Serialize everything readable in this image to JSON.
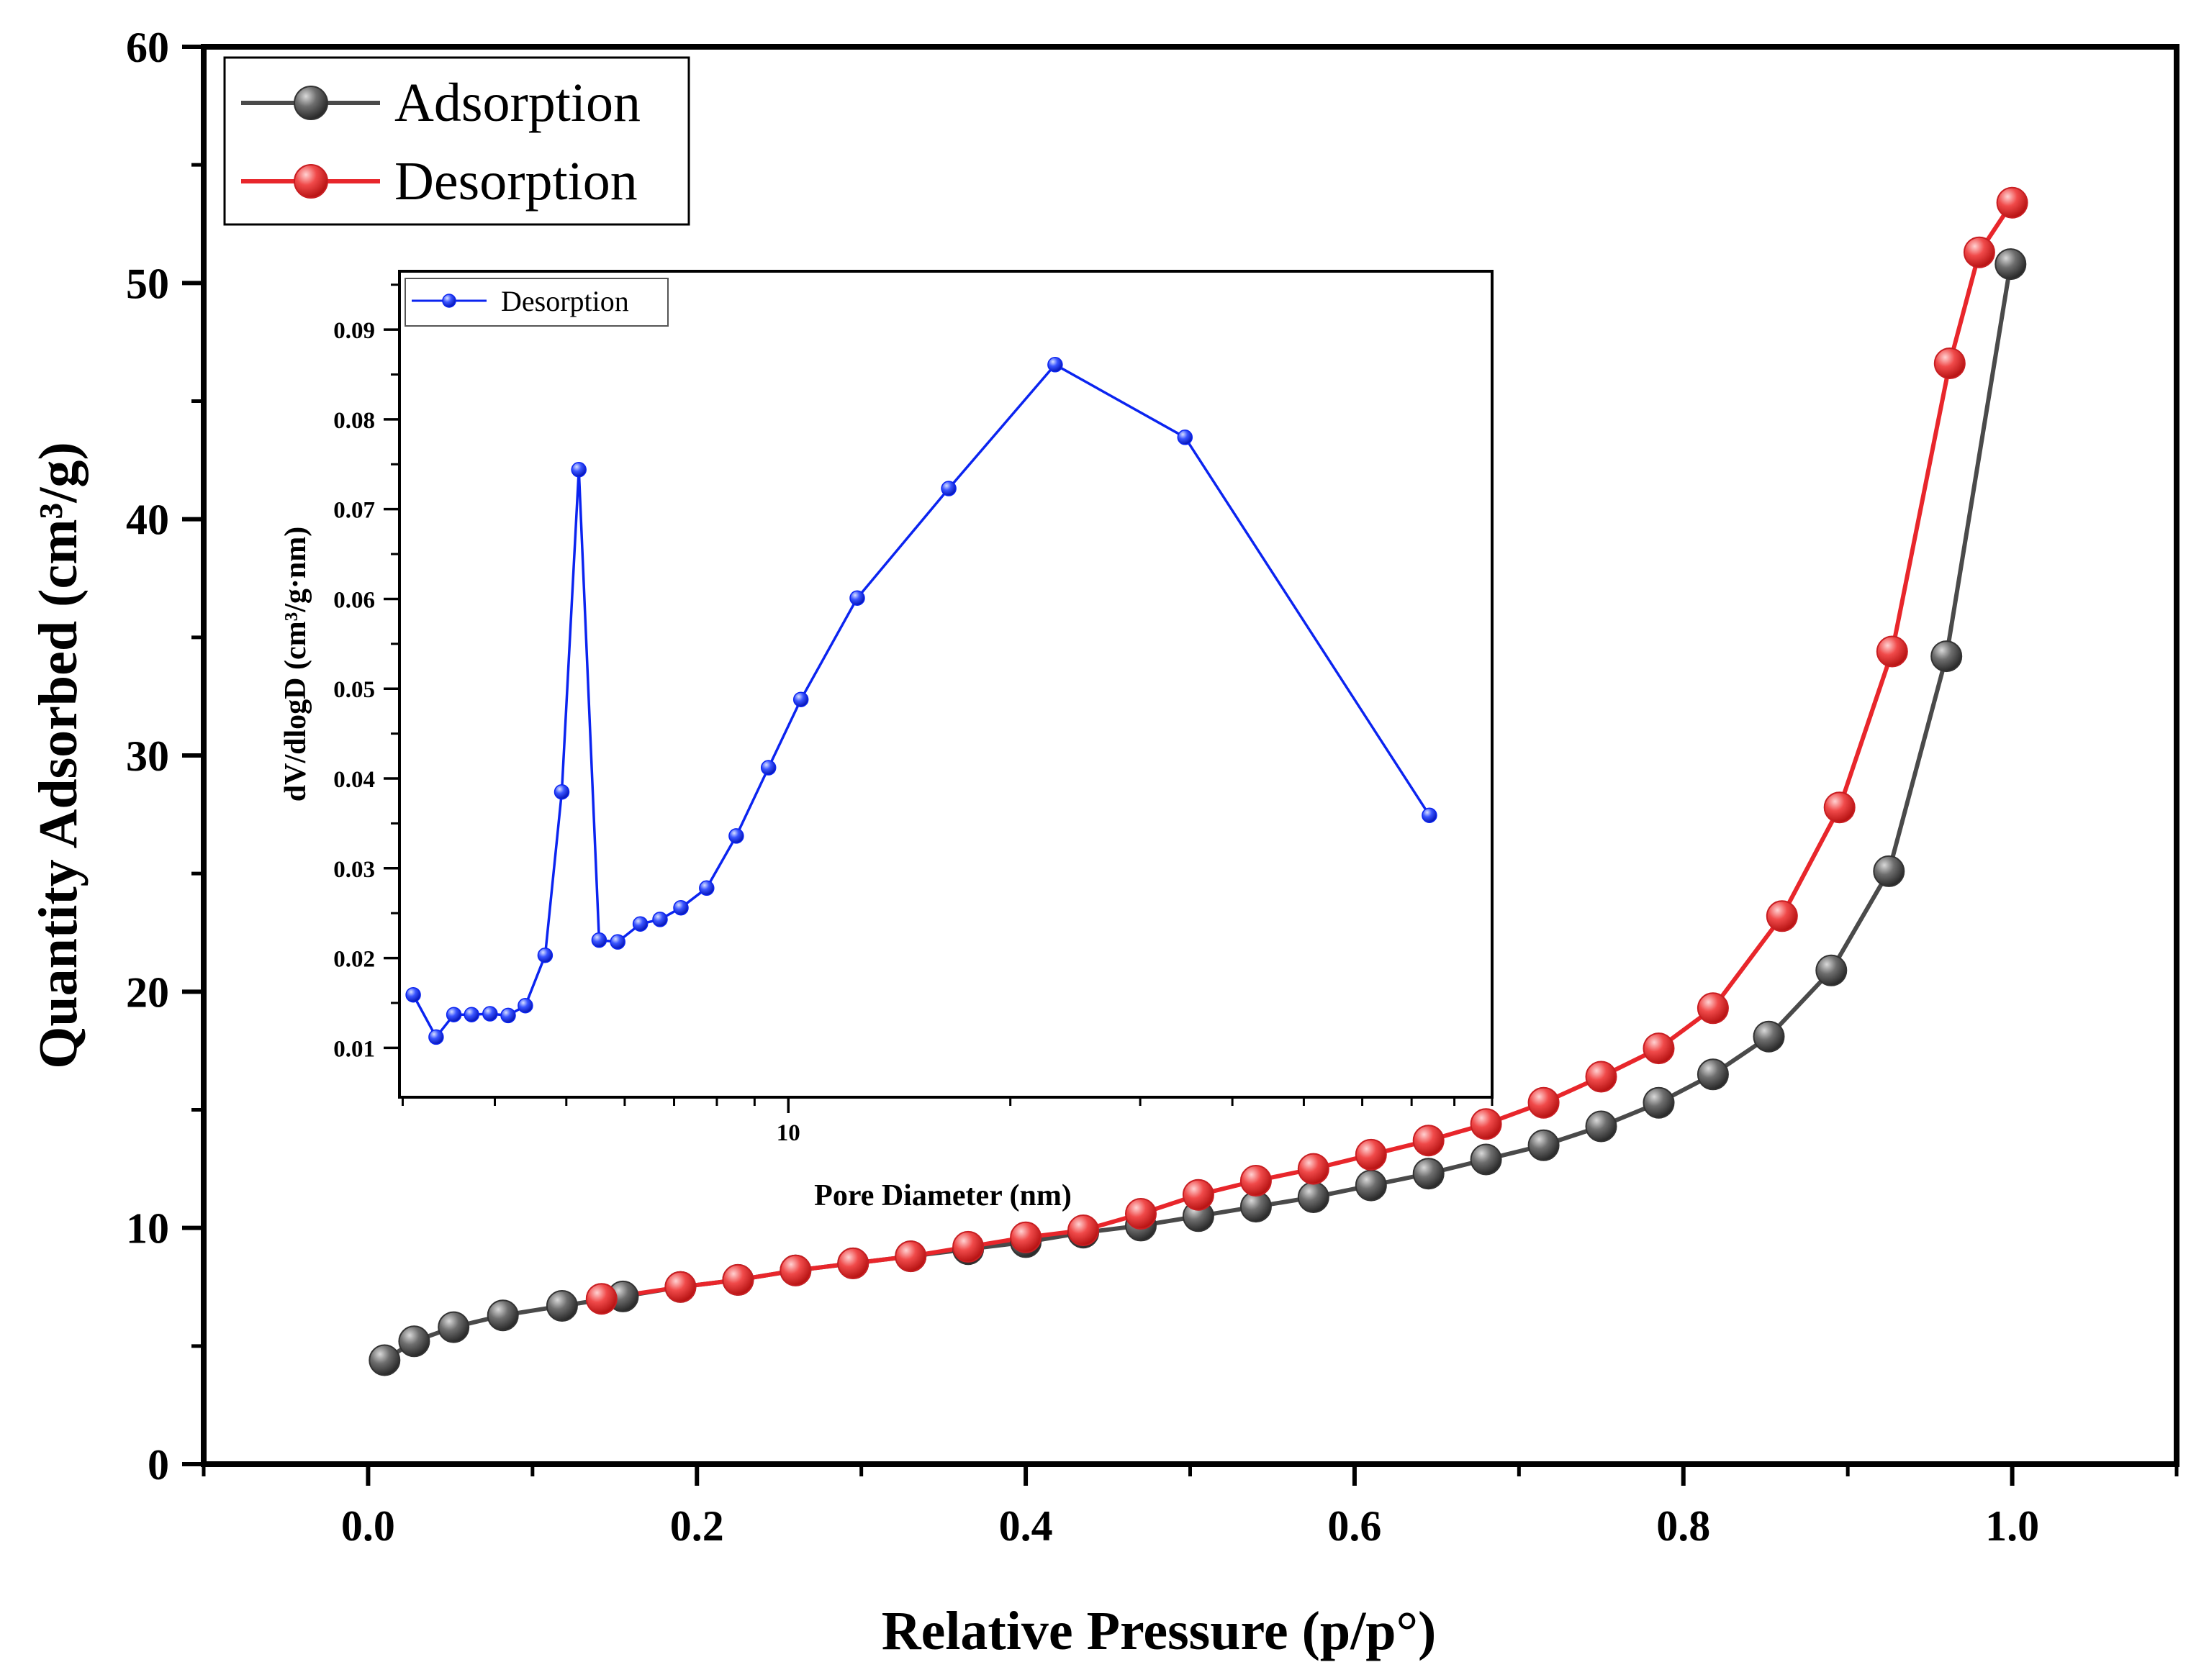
{
  "chart_data": [
    {
      "type": "line",
      "name": "main-isotherm",
      "xlabel": "Relative Pressure (p/p°)",
      "ylabel": "Quantity Adsorbed (cm³/g)",
      "xlim": [
        -0.1,
        1.1
      ],
      "ylim": [
        0,
        60
      ],
      "x_ticks": [
        0.0,
        0.2,
        0.4,
        0.6,
        0.8,
        1.0
      ],
      "x_tick_labels": [
        "0.0",
        "0.2",
        "0.4",
        "0.6",
        "0.8",
        "1.0"
      ],
      "y_ticks": [
        0,
        10,
        20,
        30,
        40,
        50,
        60
      ],
      "y_tick_labels": [
        "0",
        "10",
        "20",
        "30",
        "40",
        "50",
        "60"
      ],
      "legend_position": "top-left",
      "series": [
        {
          "name": "Adsorption",
          "color": "#4a4a4a",
          "x": [
            0.01,
            0.028,
            0.052,
            0.082,
            0.118,
            0.155,
            0.19,
            0.225,
            0.26,
            0.295,
            0.33,
            0.365,
            0.4,
            0.435,
            0.47,
            0.505,
            0.54,
            0.575,
            0.61,
            0.645,
            0.68,
            0.715,
            0.75,
            0.785,
            0.818,
            0.852,
            0.89,
            0.925,
            0.96,
            0.999
          ],
          "values": [
            4.4,
            5.2,
            5.8,
            6.3,
            6.7,
            7.1,
            7.5,
            7.8,
            8.2,
            8.5,
            8.8,
            9.1,
            9.4,
            9.8,
            10.1,
            10.5,
            10.9,
            11.3,
            11.8,
            12.3,
            12.9,
            13.5,
            14.3,
            15.3,
            16.5,
            18.1,
            20.9,
            25.1,
            34.2,
            50.8
          ]
        },
        {
          "name": "Desorption",
          "color": "#e8262b",
          "x": [
            0.142,
            0.19,
            0.225,
            0.26,
            0.295,
            0.33,
            0.365,
            0.4,
            0.435,
            0.47,
            0.505,
            0.54,
            0.575,
            0.61,
            0.645,
            0.68,
            0.715,
            0.75,
            0.785,
            0.818,
            0.86,
            0.895,
            0.927,
            0.962,
            0.98,
            1.0
          ],
          "values": [
            7.0,
            7.5,
            7.8,
            8.2,
            8.5,
            8.8,
            9.2,
            9.6,
            9.9,
            10.6,
            11.4,
            12.0,
            12.5,
            13.1,
            13.7,
            14.4,
            15.3,
            16.4,
            17.6,
            19.3,
            23.2,
            27.8,
            34.4,
            46.6,
            51.3,
            53.4
          ]
        }
      ]
    },
    {
      "type": "line",
      "name": "inset-pore-size-distribution",
      "xlabel": "Pore Diameter (nm)",
      "ylabel": "dV/dlogD (cm³/g·nm)",
      "xscale": "log",
      "xlim": [
        2.97,
        90
      ],
      "ylim": [
        0.0045,
        0.0965
      ],
      "x_ticks": [
        10
      ],
      "x_tick_labels": [
        "10"
      ],
      "y_ticks": [
        0.01,
        0.02,
        0.03,
        0.04,
        0.05,
        0.06,
        0.07,
        0.08,
        0.09
      ],
      "y_tick_labels": [
        "0.01",
        "0.02",
        "0.03",
        "0.04",
        "0.05",
        "0.06",
        "0.07",
        "0.08",
        "0.09"
      ],
      "legend_position": "top-left",
      "series": [
        {
          "name": "Desorption",
          "color": "#0b24f0",
          "x": [
            3.1,
            3.33,
            3.52,
            3.72,
            3.94,
            4.17,
            4.4,
            4.68,
            4.93,
            5.2,
            5.54,
            5.87,
            6.3,
            6.7,
            7.15,
            7.75,
            8.5,
            9.4,
            10.4,
            12.4,
            16.5,
            23.0,
            34.5,
            74.0
          ],
          "values": [
            0.0159,
            0.0112,
            0.0137,
            0.0137,
            0.0138,
            0.0136,
            0.0147,
            0.0203,
            0.0385,
            0.0744,
            0.022,
            0.0218,
            0.0238,
            0.0243,
            0.0256,
            0.0278,
            0.0336,
            0.0412,
            0.0488,
            0.0601,
            0.0723,
            0.0861,
            0.078,
            0.0359
          ]
        }
      ]
    }
  ]
}
